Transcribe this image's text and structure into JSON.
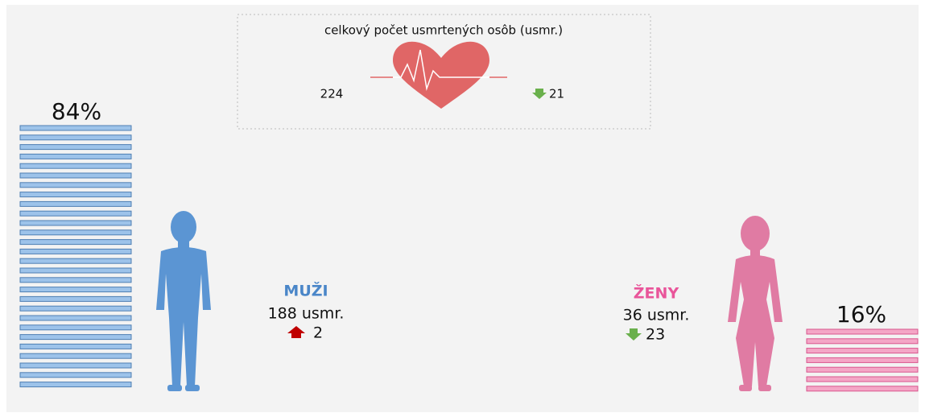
{
  "summary": {
    "title": "celkový počet usmrtených osôb (usmr.)",
    "total": "224",
    "change": "21"
  },
  "men": {
    "percent": "84%",
    "label": "MUŽI",
    "count": "188 usmr.",
    "change": "2"
  },
  "women": {
    "percent": "16%",
    "label": "ŽENY",
    "count": "36 usmr.",
    "change": "23"
  }
}
